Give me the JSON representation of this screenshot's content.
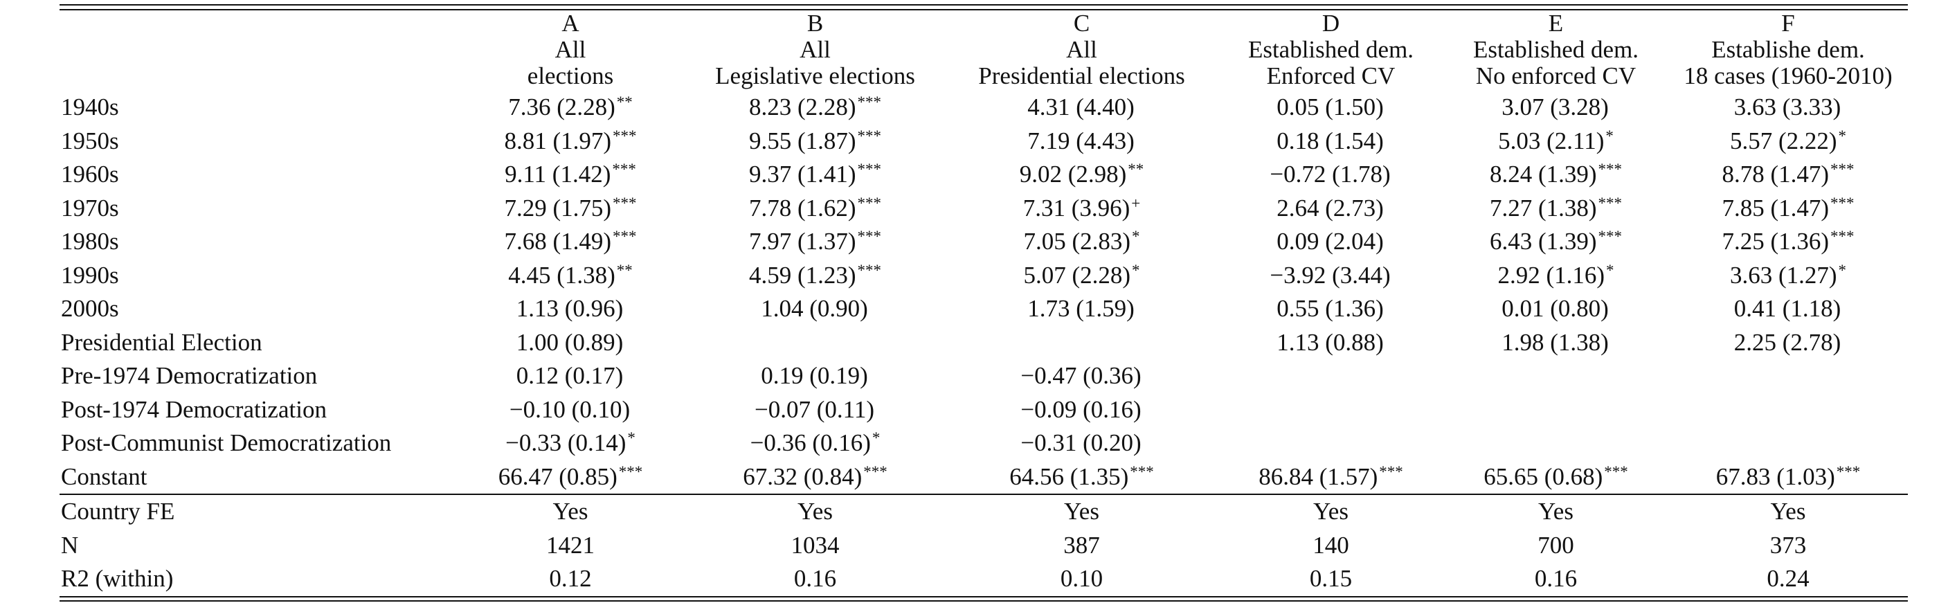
{
  "columns": [
    {
      "letter": "A",
      "line1": "All",
      "line2": "elections"
    },
    {
      "letter": "B",
      "line1": "All",
      "line2": "Legislative elections"
    },
    {
      "letter": "C",
      "line1": "All",
      "line2": "Presidential elections"
    },
    {
      "letter": "D",
      "line1": "Established dem.",
      "line2": "Enforced CV"
    },
    {
      "letter": "E",
      "line1": "Established dem.",
      "line2": "No enforced CV"
    },
    {
      "letter": "F",
      "line1": "Establishe dem.",
      "line2": "18 cases (1960-2010)"
    }
  ],
  "rows": [
    {
      "label": "1940s",
      "cells": [
        {
          "v": "7.36 (2.28)",
          "s": "**"
        },
        {
          "v": "8.23 (2.28)",
          "s": "***"
        },
        {
          "v": "4.31 (4.40)",
          "s": ""
        },
        {
          "v": "0.05 (1.50)",
          "s": ""
        },
        {
          "v": "3.07 (3.28)",
          "s": ""
        },
        {
          "v": "3.63 (3.33)",
          "s": ""
        }
      ]
    },
    {
      "label": "1950s",
      "cells": [
        {
          "v": "8.81 (1.97)",
          "s": "***"
        },
        {
          "v": "9.55 (1.87)",
          "s": "***"
        },
        {
          "v": "7.19 (4.43)",
          "s": ""
        },
        {
          "v": "0.18 (1.54)",
          "s": ""
        },
        {
          "v": "5.03 (2.11)",
          "s": "*"
        },
        {
          "v": "5.57 (2.22)",
          "s": "*"
        }
      ]
    },
    {
      "label": "1960s",
      "cells": [
        {
          "v": "9.11 (1.42)",
          "s": "***"
        },
        {
          "v": "9.37 (1.41)",
          "s": "***"
        },
        {
          "v": "9.02 (2.98)",
          "s": "**"
        },
        {
          "v": "−0.72 (1.78)",
          "s": ""
        },
        {
          "v": "8.24 (1.39)",
          "s": "***"
        },
        {
          "v": "8.78 (1.47)",
          "s": "***"
        }
      ]
    },
    {
      "label": "1970s",
      "cells": [
        {
          "v": "7.29 (1.75)",
          "s": "***"
        },
        {
          "v": "7.78 (1.62)",
          "s": "***"
        },
        {
          "v": "7.31 (3.96)",
          "s": "+"
        },
        {
          "v": "2.64 (2.73)",
          "s": ""
        },
        {
          "v": "7.27 (1.38)",
          "s": "***"
        },
        {
          "v": "7.85 (1.47)",
          "s": "***"
        }
      ]
    },
    {
      "label": "1980s",
      "cells": [
        {
          "v": "7.68 (1.49)",
          "s": "***"
        },
        {
          "v": "7.97 (1.37)",
          "s": "***"
        },
        {
          "v": "7.05 (2.83)",
          "s": "*"
        },
        {
          "v": "0.09 (2.04)",
          "s": ""
        },
        {
          "v": "6.43 (1.39)",
          "s": "***"
        },
        {
          "v": "7.25 (1.36)",
          "s": "***"
        }
      ]
    },
    {
      "label": "1990s",
      "cells": [
        {
          "v": "4.45 (1.38)",
          "s": "**"
        },
        {
          "v": "4.59 (1.23)",
          "s": "***"
        },
        {
          "v": "5.07 (2.28)",
          "s": "*"
        },
        {
          "v": "−3.92 (3.44)",
          "s": ""
        },
        {
          "v": "2.92 (1.16)",
          "s": "*"
        },
        {
          "v": "3.63 (1.27)",
          "s": "*"
        }
      ]
    },
    {
      "label": "2000s",
      "cells": [
        {
          "v": "1.13 (0.96)",
          "s": ""
        },
        {
          "v": "1.04 (0.90)",
          "s": ""
        },
        {
          "v": "1.73 (1.59)",
          "s": ""
        },
        {
          "v": "0.55 (1.36)",
          "s": ""
        },
        {
          "v": "0.01 (0.80)",
          "s": ""
        },
        {
          "v": "0.41 (1.18)",
          "s": ""
        }
      ]
    },
    {
      "label": "Presidential Election",
      "cells": [
        {
          "v": "1.00 (0.89)",
          "s": ""
        },
        {
          "v": "",
          "s": ""
        },
        {
          "v": "",
          "s": ""
        },
        {
          "v": "1.13 (0.88)",
          "s": ""
        },
        {
          "v": "1.98 (1.38)",
          "s": ""
        },
        {
          "v": "2.25 (2.78)",
          "s": ""
        }
      ]
    },
    {
      "label": "Pre-1974 Democratization",
      "cells": [
        {
          "v": "0.12 (0.17)",
          "s": ""
        },
        {
          "v": "0.19 (0.19)",
          "s": ""
        },
        {
          "v": "−0.47 (0.36)",
          "s": ""
        },
        {
          "v": "",
          "s": ""
        },
        {
          "v": "",
          "s": ""
        },
        {
          "v": "",
          "s": ""
        }
      ]
    },
    {
      "label": "Post-1974 Democratization",
      "cells": [
        {
          "v": "−0.10 (0.10)",
          "s": ""
        },
        {
          "v": "−0.07 (0.11)",
          "s": ""
        },
        {
          "v": "−0.09 (0.16)",
          "s": ""
        },
        {
          "v": "",
          "s": ""
        },
        {
          "v": "",
          "s": ""
        },
        {
          "v": "",
          "s": ""
        }
      ]
    },
    {
      "label": "Post-Communist Democratization",
      "cells": [
        {
          "v": "−0.33 (0.14)",
          "s": "*"
        },
        {
          "v": "−0.36 (0.16)",
          "s": "*"
        },
        {
          "v": "−0.31 (0.20)",
          "s": ""
        },
        {
          "v": "",
          "s": ""
        },
        {
          "v": "",
          "s": ""
        },
        {
          "v": "",
          "s": ""
        }
      ]
    },
    {
      "label": "Constant",
      "cells": [
        {
          "v": "66.47 (0.85)",
          "s": "***"
        },
        {
          "v": "67.32 (0.84)",
          "s": "***"
        },
        {
          "v": "64.56 (1.35)",
          "s": "***"
        },
        {
          "v": "86.84 (1.57)",
          "s": "***"
        },
        {
          "v": "65.65 (0.68)",
          "s": "***"
        },
        {
          "v": "67.83 (1.03)",
          "s": "***"
        }
      ]
    }
  ],
  "footer": [
    {
      "label": "Country FE",
      "cells": [
        "Yes",
        "Yes",
        "Yes",
        "Yes",
        "Yes",
        "Yes"
      ]
    },
    {
      "label": "N",
      "cells": [
        "1421",
        "1034",
        "387",
        "140",
        "700",
        "373"
      ]
    },
    {
      "label": "R2 (within)",
      "cells": [
        "0.12",
        "0.16",
        "0.10",
        "0.15",
        "0.16",
        "0.24"
      ]
    }
  ]
}
